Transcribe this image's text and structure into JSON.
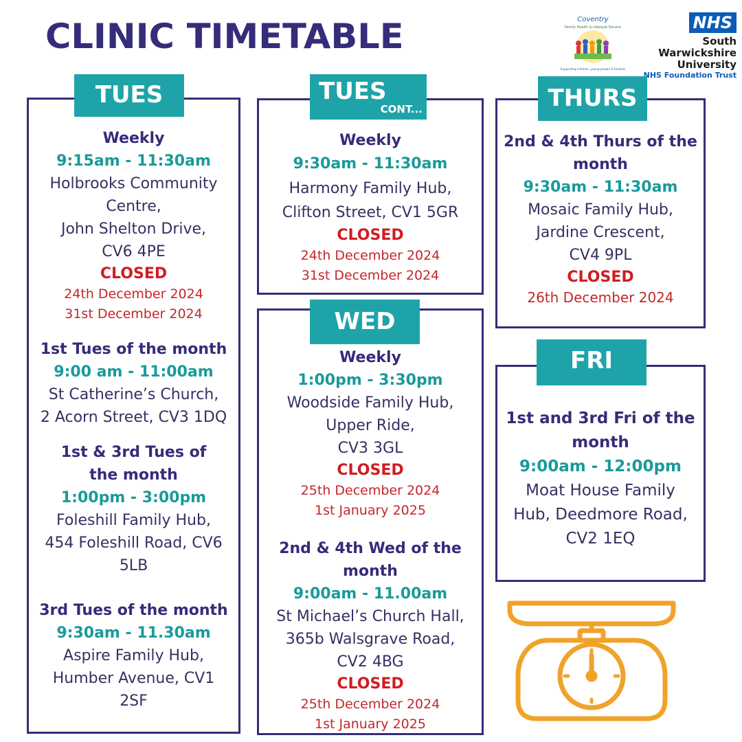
{
  "title": "CLINIC TIMETABLE",
  "logos": {
    "coventry_name": "Coventry",
    "coventry_service": "Family Health & Lifestyle Service",
    "coventry_tagline": "Supporting children, young people & families",
    "nhs_badge": "NHS",
    "nhs_name_1": "South Warwickshire",
    "nhs_name_2": "University",
    "nhs_trust": "NHS Foundation Trust"
  },
  "colors": {
    "navy": "#352c7a",
    "teal": "#1ea4a8",
    "red": "#d01d22",
    "orange": "#f0a32a",
    "nhs_blue": "#0a5cb8"
  },
  "panels": {
    "tues": {
      "day": "TUES",
      "s1": {
        "freq": "Weekly",
        "time": "9:15am - 11:30am",
        "addr": [
          "Holbrooks Community",
          "Centre,",
          "John Shelton Drive,",
          "CV6 4PE"
        ],
        "closed": "CLOSED",
        "dates": [
          "24th December 2024",
          "31st December 2024"
        ]
      },
      "s2": {
        "freq": "1st Tues of the month",
        "time": "9:00 am - 11:00am",
        "addr": [
          "St Catherine’s Church,",
          "2 Acorn Street, CV3 1DQ"
        ]
      },
      "s3": {
        "freq": [
          "1st & 3rd Tues of",
          "the month"
        ],
        "time": "1:00pm - 3:00pm",
        "addr": [
          "Foleshill Family Hub,",
          "454 Foleshill Road, CV6",
          "5LB"
        ]
      },
      "s4": {
        "freq": "3rd Tues of the month",
        "time": "9:30am - 11.30am",
        "addr": [
          "Aspire Family Hub,",
          "Humber Avenue, CV1",
          "2SF"
        ]
      }
    },
    "tues_cont": {
      "day": "TUES",
      "sub": "CONT...",
      "s1": {
        "freq": "Weekly",
        "time": "9:30am - 11:30am",
        "addr": [
          "Harmony Family Hub,",
          "Clifton Street, CV1 5GR"
        ],
        "closed": "CLOSED",
        "dates": [
          "24th December 2024",
          "31st December 2024"
        ]
      }
    },
    "wed": {
      "day": "WED",
      "s1": {
        "freq": "Weekly",
        "time": "1:00pm - 3:30pm",
        "addr": [
          "Woodside Family Hub,",
          "Upper Ride,",
          "CV3 3GL"
        ],
        "closed": "CLOSED",
        "dates": [
          "25th December 2024",
          "1st January 2025"
        ]
      },
      "s2": {
        "freq": [
          "2nd & 4th Wed of the",
          "month"
        ],
        "time": "9:00am - 11.00am",
        "addr": [
          "St Michael’s Church Hall,",
          "365b Walsgrave Road,",
          "CV2 4BG"
        ],
        "closed": "CLOSED",
        "dates": [
          "25th December 2024",
          "1st January 2025"
        ]
      }
    },
    "thurs": {
      "day": "THURS",
      "s1": {
        "freq": [
          "2nd & 4th Thurs of the",
          "month"
        ],
        "time": "9:30am - 11:30am",
        "addr": [
          "Mosaic Family Hub,",
          "Jardine Crescent,",
          "CV4 9PL"
        ],
        "closed": "CLOSED",
        "dates": [
          "26th December 2024"
        ]
      }
    },
    "fri": {
      "day": "FRI",
      "s1": {
        "freq": [
          "1st and 3rd Fri of the",
          "month"
        ],
        "time": "9:00am - 12:00pm",
        "addr": [
          "Moat House Family",
          "Hub, Deedmore Road,",
          "CV2 1EQ"
        ]
      }
    }
  }
}
